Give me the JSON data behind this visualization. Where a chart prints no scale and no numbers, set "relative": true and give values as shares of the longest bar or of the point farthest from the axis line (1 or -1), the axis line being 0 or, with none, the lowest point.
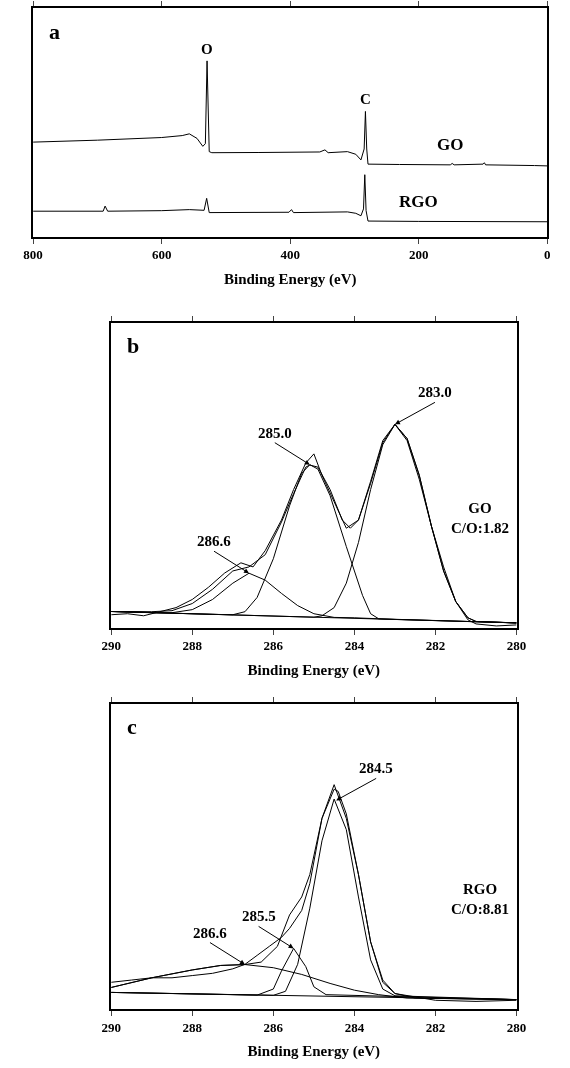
{
  "chart_data": [
    {
      "type": "line",
      "title": "a",
      "xlabel": "Binding Energy (eV)",
      "relative": true,
      "xlim": [
        800,
        0
      ],
      "xticks": [
        800,
        600,
        400,
        200,
        0
      ],
      "tick_labels": "x",
      "series": [
        {
          "name": "GO",
          "color": "#000000",
          "x": [
            800,
            700,
            600,
            568,
            557,
            545,
            536,
            532,
            529.4,
            526,
            522,
            450,
            354,
            346,
            341,
            311,
            298,
            290,
            285,
            283,
            281,
            279,
            230,
            151,
            148,
            145,
            100,
            98,
            96,
            20,
            0
          ],
          "values": [
            0.539,
            0.55,
            0.565,
            0.576,
            0.586,
            0.56,
            0.515,
            0.53,
            1.0,
            0.485,
            0.479,
            0.48,
            0.483,
            0.495,
            0.479,
            0.485,
            0.47,
            0.438,
            0.5,
            0.713,
            0.5,
            0.414,
            0.412,
            0.41,
            0.418,
            0.41,
            0.414,
            0.422,
            0.41,
            0.406,
            0.404
          ]
        },
        {
          "name": "RGO",
          "color": "#000000",
          "x": [
            800,
            691,
            688,
            684,
            600,
            557,
            534,
            530,
            526,
            402,
            398,
            395,
            311,
            298,
            290,
            286,
            284,
            282,
            279,
            200,
            0
          ],
          "values": [
            0.147,
            0.147,
            0.176,
            0.147,
            0.15,
            0.156,
            0.152,
            0.22,
            0.139,
            0.141,
            0.156,
            0.139,
            0.143,
            0.135,
            0.121,
            0.16,
            0.354,
            0.15,
            0.091,
            0.089,
            0.087
          ]
        }
      ],
      "annotations": [
        {
          "text": "O",
          "x": 529.4,
          "y": 1.0
        },
        {
          "text": "C",
          "x": 283,
          "y": 0.713
        }
      ]
    },
    {
      "type": "line",
      "title": "b",
      "xlabel": "Binding Energy (eV)",
      "relative": true,
      "xlim": [
        290,
        280
      ],
      "xticks": [
        290,
        288,
        286,
        284,
        282,
        280
      ],
      "tick_labels": "x",
      "series": [
        {
          "color": "#000000",
          "x": [
            290,
            289.6,
            289.2,
            288.8,
            288.4,
            288,
            287.6,
            287.2,
            286.8,
            286.5,
            286.2,
            285.8,
            285.5,
            285.2,
            285.0,
            284.8,
            284.5,
            284.2,
            283.9,
            283.6,
            283.3,
            283.0,
            282.7,
            282.4,
            282.1,
            281.8,
            281.5,
            281.2,
            281,
            280.5,
            280
          ],
          "values": [
            0.065,
            0.07,
            0.06,
            0.08,
            0.1,
            0.14,
            0.2,
            0.27,
            0.32,
            0.3,
            0.38,
            0.53,
            0.68,
            0.81,
            0.855,
            0.75,
            0.62,
            0.49,
            0.53,
            0.71,
            0.91,
            1.0,
            0.92,
            0.73,
            0.5,
            0.3,
            0.13,
            0.04,
            0.02,
            0.01,
            0.015
          ]
        },
        {
          "color": "#000000",
          "x": [
            290,
            289,
            288.5,
            288,
            287.5,
            287,
            286.6,
            286.2,
            285.8,
            285.5,
            285.2,
            285.1,
            284.9,
            284.6,
            284.3,
            284.1,
            283.9,
            283.6,
            283.3,
            283.0,
            282.7,
            282.4,
            282.1,
            281.8,
            281.5,
            281.2,
            281,
            280
          ],
          "values": [
            0.081,
            0.08,
            0.085,
            0.12,
            0.19,
            0.28,
            0.3,
            0.36,
            0.52,
            0.66,
            0.79,
            0.8,
            0.79,
            0.68,
            0.53,
            0.49,
            0.53,
            0.72,
            0.92,
            1.0,
            0.93,
            0.75,
            0.5,
            0.28,
            0.13,
            0.05,
            0.032,
            0.025
          ]
        },
        {
          "color": "#000000",
          "x": [
            290,
            289,
            288.5,
            288,
            287.5,
            287,
            286.6,
            286.2,
            285.8,
            285.4,
            285,
            284.5,
            284,
            283,
            280
          ],
          "values": [
            0.081,
            0.075,
            0.075,
            0.09,
            0.14,
            0.22,
            0.269,
            0.235,
            0.17,
            0.11,
            0.07,
            0.052,
            0.05,
            0.042,
            0.025
          ]
        },
        {
          "color": "#000000",
          "x": [
            290,
            287.5,
            287,
            286.7,
            286.4,
            286,
            285.6,
            285.3,
            285.1,
            284.9,
            284.6,
            284.2,
            283.8,
            283.6,
            283.4,
            280
          ],
          "values": [
            0.081,
            0.067,
            0.065,
            0.08,
            0.15,
            0.34,
            0.6,
            0.76,
            0.802,
            0.78,
            0.65,
            0.4,
            0.16,
            0.07,
            0.045,
            0.025
          ]
        },
        {
          "color": "#000000",
          "x": [
            290,
            285,
            284.8,
            284.5,
            284.2,
            283.9,
            283.6,
            283.3,
            283.0,
            282.7,
            282.4,
            282.1,
            281.8,
            281.5,
            281.2,
            281,
            280
          ],
          "values": [
            0.081,
            0.053,
            0.06,
            0.1,
            0.22,
            0.42,
            0.68,
            0.9,
            1.0,
            0.93,
            0.75,
            0.5,
            0.28,
            0.13,
            0.05,
            0.032,
            0.025
          ]
        },
        {
          "color": "#000000",
          "x": [
            290,
            280
          ],
          "values": [
            0.081,
            0.025
          ]
        }
      ],
      "annotations": [
        {
          "text": "283.0",
          "x": 283.0,
          "y": 1.0
        },
        {
          "text": "285.0",
          "x": 285.1,
          "y": 0.802
        },
        {
          "text": "286.6",
          "x": 286.6,
          "y": 0.269
        },
        "GO\nC/O:1.82"
      ]
    },
    {
      "type": "line",
      "title": "c",
      "xlabel": "Binding Energy (eV)",
      "relative": true,
      "xlim": [
        290,
        280
      ],
      "xticks": [
        290,
        288,
        286,
        284,
        282,
        280
      ],
      "tick_labels": "x",
      "series": [
        {
          "color": "#000000",
          "x": [
            290,
            289.5,
            289,
            288.5,
            288,
            287.5,
            287,
            286.7,
            286.4,
            286.1,
            285.8,
            285.6,
            285.3,
            285.1,
            284.8,
            284.5,
            284.4,
            284.2,
            283.9,
            283.6,
            283.3,
            283,
            282,
            281,
            280
          ],
          "values": [
            0.12,
            0.13,
            0.14,
            0.14,
            0.15,
            0.16,
            0.18,
            0.2,
            0.24,
            0.28,
            0.32,
            0.36,
            0.44,
            0.56,
            0.85,
            0.98,
            0.97,
            0.87,
            0.6,
            0.3,
            0.12,
            0.07,
            0.04,
            0.035,
            0.04
          ]
        },
        {
          "color": "#000000",
          "x": [
            290,
            289,
            288,
            287.3,
            286.7,
            286.3,
            285.9,
            285.6,
            285.3,
            285.1,
            284.8,
            284.5,
            284.2,
            283.9,
            283.6,
            283.3,
            283,
            282.5,
            280
          ],
          "values": [
            0.097,
            0.14,
            0.175,
            0.195,
            0.199,
            0.21,
            0.28,
            0.42,
            0.5,
            0.6,
            0.85,
            1.0,
            0.85,
            0.6,
            0.3,
            0.13,
            0.07,
            0.05,
            0.043
          ]
        },
        {
          "color": "#000000",
          "x": [
            290,
            289,
            288,
            287.3,
            286.7,
            286,
            285.3,
            284.6,
            284,
            283.4,
            282.7,
            280
          ],
          "values": [
            0.097,
            0.14,
            0.175,
            0.195,
            0.199,
            0.185,
            0.155,
            0.115,
            0.085,
            0.065,
            0.05,
            0.043
          ]
        },
        {
          "color": "#000000",
          "x": [
            290,
            286.4,
            286,
            285.8,
            285.5,
            285.2,
            285.0,
            284.7,
            280
          ],
          "values": [
            0.075,
            0.063,
            0.09,
            0.17,
            0.271,
            0.19,
            0.1,
            0.065,
            0.043
          ]
        },
        {
          "color": "#000000",
          "x": [
            290,
            286,
            285.7,
            285.4,
            285.1,
            284.8,
            284.5,
            284.2,
            283.9,
            283.6,
            283.3,
            283.0,
            280
          ],
          "values": [
            0.075,
            0.062,
            0.08,
            0.2,
            0.45,
            0.75,
            0.936,
            0.8,
            0.5,
            0.22,
            0.09,
            0.06,
            0.043
          ]
        },
        {
          "color": "#000000",
          "x": [
            290,
            280
          ],
          "values": [
            0.075,
            0.043
          ]
        }
      ],
      "annotations": [
        {
          "text": "284.5",
          "x": 284.45,
          "y": 0.93
        },
        {
          "text": "285.5",
          "x": 285.5,
          "y": 0.271
        },
        {
          "text": "286.6",
          "x": 286.7,
          "y": 0.199
        },
        "RGO\nC/O:8.81"
      ]
    }
  ]
}
